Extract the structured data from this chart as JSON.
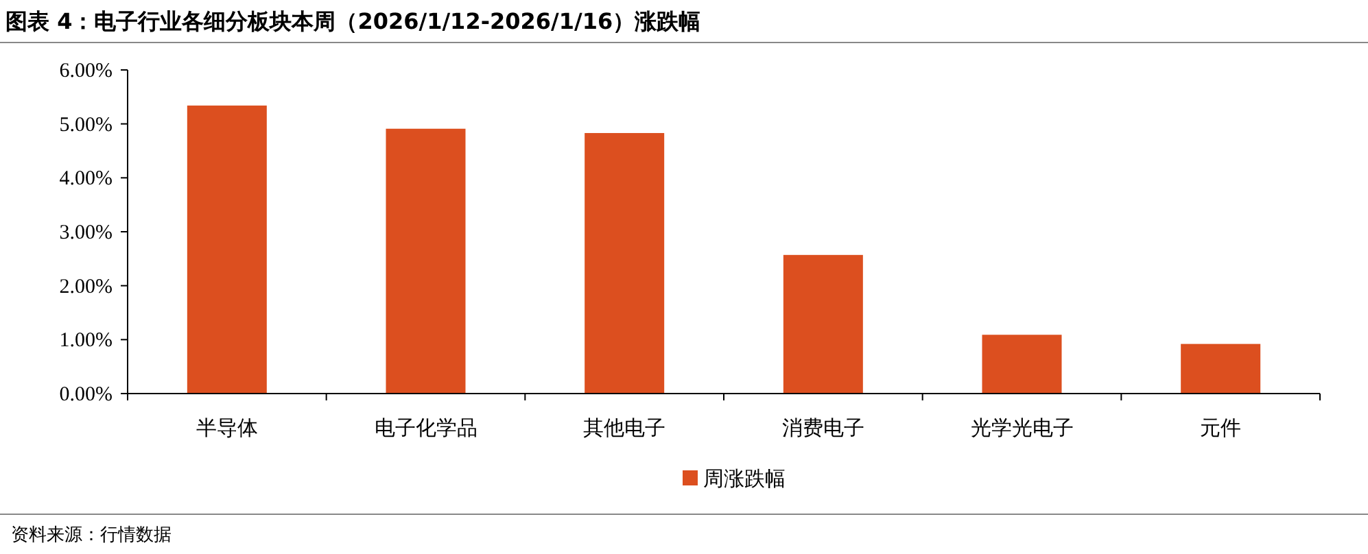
{
  "chart_data": {
    "type": "bar",
    "title": "图表 4：电子行业各细分板块本周（2026/1/12-2026/1/16）涨跌幅",
    "categories": [
      "半导体",
      "电子化学品",
      "其他电子",
      "消费电子",
      "光学光电子",
      "元件"
    ],
    "series": [
      {
        "name": "周涨跌幅",
        "color": "#dc4f1f",
        "values": [
          5.34,
          4.91,
          4.83,
          2.57,
          1.09,
          0.92
        ]
      }
    ],
    "ylim": [
      0,
      6
    ],
    "yticks": [
      {
        "value": 0,
        "label": "0.00%"
      },
      {
        "value": 1,
        "label": "1.00%"
      },
      {
        "value": 2,
        "label": "2.00%"
      },
      {
        "value": 3,
        "label": "3.00%"
      },
      {
        "value": 4,
        "label": "4.00%"
      },
      {
        "value": 5,
        "label": "5.00%"
      },
      {
        "value": 6,
        "label": "6.00%"
      }
    ],
    "grid": false,
    "legend": "bottom",
    "annotations": [
      "资料来源：行情数据"
    ]
  }
}
